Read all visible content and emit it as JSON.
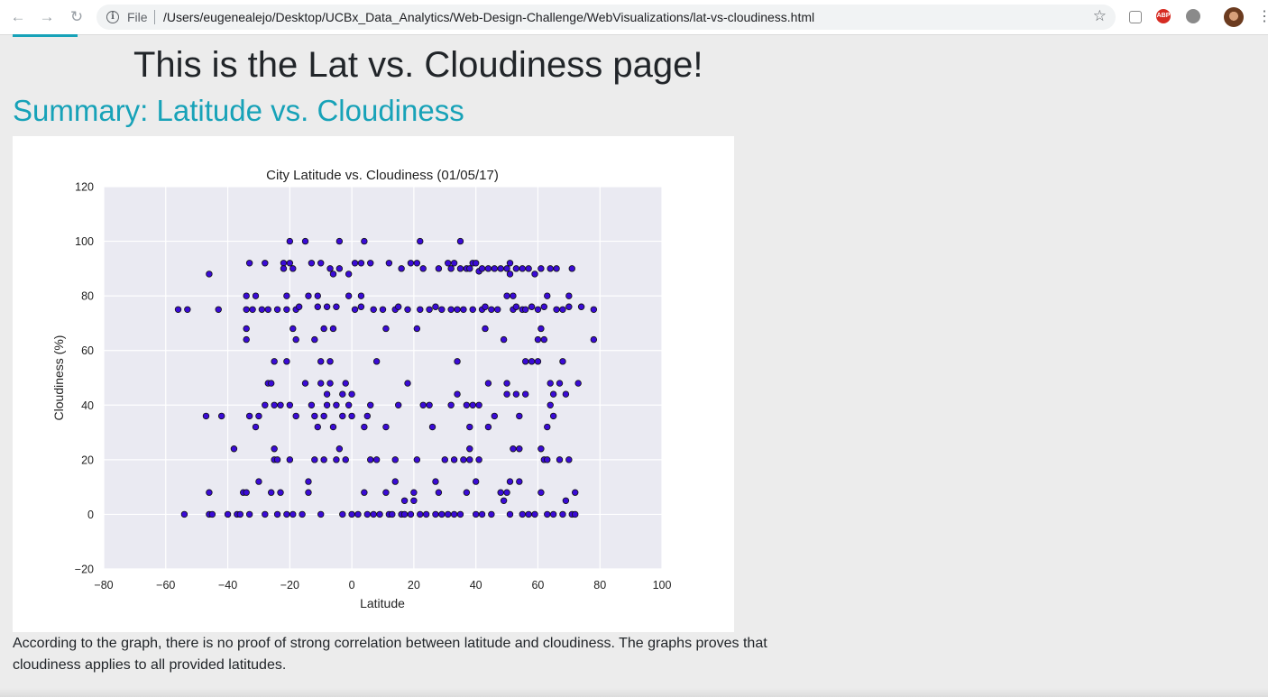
{
  "browser": {
    "scheme_label": "File",
    "url": "/Users/eugenealejo/Desktop/UCBx_Data_Analytics/Web-Design-Challenge/WebVisualizations/lat-vs-cloudiness.html",
    "icons": [
      "back-arrow-icon",
      "forward-arrow-icon",
      "reload-icon",
      "info-icon",
      "star-icon",
      "pocket-icon",
      "abp-icon",
      "extension-icon",
      "avatar",
      "menu-dots-icon"
    ],
    "abp_label": "ABP"
  },
  "page": {
    "title": "This is the Lat vs. Cloudiness page!",
    "summary_heading": "Summary: Latitude vs. Cloudiness",
    "description": "According to the graph, there is no proof of strong correlation between latitude and cloudiness. The graphs proves that cloudiness applies to all provided latitudes.",
    "accent_color": "#17a2b8"
  },
  "chart_data": {
    "type": "scatter",
    "title": "City Latitude vs. Cloudiness (01/05/17)",
    "xlabel": "Latitude",
    "ylabel": "Cloudiness (%)",
    "xlim": [
      -80,
      100
    ],
    "ylim": [
      -20,
      120
    ],
    "xticks": [
      "−80",
      "−60",
      "−40",
      "−20",
      "0",
      "20",
      "40",
      "60",
      "80",
      "100"
    ],
    "yticks": [
      "−20",
      "0",
      "20",
      "40",
      "60",
      "80",
      "100",
      "120"
    ],
    "grid": true,
    "marker_color": "#3a0bd6",
    "background_color": "#eaeaf2",
    "points": [
      [
        -54,
        0
      ],
      [
        -53,
        75
      ],
      [
        -56,
        75
      ],
      [
        -46,
        88
      ],
      [
        -47,
        36
      ],
      [
        -46,
        8
      ],
      [
        -46,
        0
      ],
      [
        -45,
        0
      ],
      [
        -43,
        75
      ],
      [
        -42,
        36
      ],
      [
        -40,
        0
      ],
      [
        -38,
        24
      ],
      [
        -37,
        0
      ],
      [
        -36,
        0
      ],
      [
        -35,
        8
      ],
      [
        -34,
        8
      ],
      [
        -34,
        75
      ],
      [
        -34,
        80
      ],
      [
        -34,
        64
      ],
      [
        -34,
        68
      ],
      [
        -33,
        92
      ],
      [
        -33,
        36
      ],
      [
        -33,
        0
      ],
      [
        -32,
        75
      ],
      [
        -31,
        80
      ],
      [
        -31,
        32
      ],
      [
        -30,
        12
      ],
      [
        -30,
        36
      ],
      [
        -29,
        75
      ],
      [
        -28,
        92
      ],
      [
        -28,
        0
      ],
      [
        -28,
        40
      ],
      [
        -27,
        48
      ],
      [
        -27,
        75
      ],
      [
        -26,
        8
      ],
      [
        -26,
        48
      ],
      [
        -25,
        20
      ],
      [
        -25,
        24
      ],
      [
        -25,
        56
      ],
      [
        -25,
        40
      ],
      [
        -24,
        75
      ],
      [
        -24,
        0
      ],
      [
        -24,
        20
      ],
      [
        -23,
        8
      ],
      [
        -23,
        40
      ],
      [
        -22,
        92
      ],
      [
        -22,
        90
      ],
      [
        -21,
        0
      ],
      [
        -21,
        75
      ],
      [
        -21,
        80
      ],
      [
        -21,
        56
      ],
      [
        -20,
        100
      ],
      [
        -20,
        92
      ],
      [
        -20,
        40
      ],
      [
        -20,
        20
      ],
      [
        -19,
        90
      ],
      [
        -19,
        68
      ],
      [
        -19,
        0
      ],
      [
        -18,
        75
      ],
      [
        -18,
        36
      ],
      [
        -18,
        64
      ],
      [
        -17,
        76
      ],
      [
        -16,
        0
      ],
      [
        -15,
        100
      ],
      [
        -15,
        48
      ],
      [
        -14,
        80
      ],
      [
        -14,
        12
      ],
      [
        -14,
        8
      ],
      [
        -13,
        40
      ],
      [
        -13,
        92
      ],
      [
        -12,
        20
      ],
      [
        -12,
        36
      ],
      [
        -12,
        64
      ],
      [
        -11,
        76
      ],
      [
        -11,
        80
      ],
      [
        -11,
        32
      ],
      [
        -10,
        0
      ],
      [
        -10,
        48
      ],
      [
        -10,
        56
      ],
      [
        -10,
        92
      ],
      [
        -9,
        36
      ],
      [
        -9,
        68
      ],
      [
        -9,
        20
      ],
      [
        -8,
        76
      ],
      [
        -8,
        44
      ],
      [
        -8,
        40
      ],
      [
        -7,
        90
      ],
      [
        -7,
        48
      ],
      [
        -7,
        56
      ],
      [
        -6,
        68
      ],
      [
        -6,
        88
      ],
      [
        -6,
        32
      ],
      [
        -5,
        76
      ],
      [
        -5,
        40
      ],
      [
        -5,
        20
      ],
      [
        -4,
        100
      ],
      [
        -4,
        90
      ],
      [
        -4,
        24
      ],
      [
        -3,
        36
      ],
      [
        -3,
        44
      ],
      [
        -3,
        0
      ],
      [
        -2,
        48
      ],
      [
        -2,
        20
      ],
      [
        -1,
        80
      ],
      [
        -1,
        88
      ],
      [
        -1,
        40
      ],
      [
        0,
        36
      ],
      [
        0,
        44
      ],
      [
        0,
        0
      ],
      [
        1,
        92
      ],
      [
        1,
        75
      ],
      [
        2,
        0
      ],
      [
        3,
        92
      ],
      [
        3,
        80
      ],
      [
        3,
        76
      ],
      [
        4,
        100
      ],
      [
        4,
        32
      ],
      [
        4,
        8
      ],
      [
        5,
        0
      ],
      [
        5,
        36
      ],
      [
        6,
        92
      ],
      [
        6,
        20
      ],
      [
        6,
        40
      ],
      [
        7,
        75
      ],
      [
        7,
        0
      ],
      [
        8,
        56
      ],
      [
        8,
        20
      ],
      [
        9,
        0
      ],
      [
        10,
        75
      ],
      [
        11,
        8
      ],
      [
        11,
        32
      ],
      [
        11,
        68
      ],
      [
        12,
        92
      ],
      [
        12,
        0
      ],
      [
        13,
        0
      ],
      [
        14,
        75
      ],
      [
        14,
        12
      ],
      [
        14,
        20
      ],
      [
        15,
        40
      ],
      [
        15,
        76
      ],
      [
        16,
        90
      ],
      [
        16,
        0
      ],
      [
        17,
        0
      ],
      [
        17,
        5
      ],
      [
        18,
        48
      ],
      [
        18,
        75
      ],
      [
        19,
        92
      ],
      [
        19,
        0
      ],
      [
        20,
        5
      ],
      [
        20,
        8
      ],
      [
        21,
        92
      ],
      [
        21,
        20
      ],
      [
        21,
        68
      ],
      [
        22,
        100
      ],
      [
        22,
        75
      ],
      [
        22,
        0
      ],
      [
        23,
        40
      ],
      [
        23,
        90
      ],
      [
        24,
        0
      ],
      [
        25,
        75
      ],
      [
        25,
        40
      ],
      [
        26,
        32
      ],
      [
        27,
        12
      ],
      [
        27,
        76
      ],
      [
        27,
        0
      ],
      [
        28,
        8
      ],
      [
        28,
        90
      ],
      [
        29,
        75
      ],
      [
        29,
        0
      ],
      [
        30,
        20
      ],
      [
        31,
        92
      ],
      [
        31,
        0
      ],
      [
        32,
        90
      ],
      [
        32,
        75
      ],
      [
        32,
        40
      ],
      [
        33,
        20
      ],
      [
        33,
        92
      ],
      [
        33,
        0
      ],
      [
        34,
        75
      ],
      [
        34,
        44
      ],
      [
        34,
        56
      ],
      [
        35,
        100
      ],
      [
        35,
        90
      ],
      [
        35,
        0
      ],
      [
        36,
        20
      ],
      [
        36,
        75
      ],
      [
        37,
        90
      ],
      [
        37,
        8
      ],
      [
        37,
        40
      ],
      [
        38,
        90
      ],
      [
        38,
        24
      ],
      [
        38,
        20
      ],
      [
        38,
        32
      ],
      [
        39,
        92
      ],
      [
        39,
        40
      ],
      [
        39,
        75
      ],
      [
        40,
        92
      ],
      [
        40,
        12
      ],
      [
        40,
        0
      ],
      [
        41,
        40
      ],
      [
        41,
        89
      ],
      [
        41,
        20
      ],
      [
        42,
        75
      ],
      [
        42,
        90
      ],
      [
        42,
        0
      ],
      [
        43,
        76
      ],
      [
        43,
        68
      ],
      [
        44,
        48
      ],
      [
        44,
        90
      ],
      [
        44,
        32
      ],
      [
        45,
        75
      ],
      [
        45,
        0
      ],
      [
        46,
        36
      ],
      [
        46,
        90
      ],
      [
        47,
        75
      ],
      [
        48,
        90
      ],
      [
        48,
        8
      ],
      [
        49,
        5
      ],
      [
        49,
        64
      ],
      [
        50,
        90
      ],
      [
        50,
        80
      ],
      [
        50,
        44
      ],
      [
        50,
        48
      ],
      [
        50,
        8
      ],
      [
        51,
        92
      ],
      [
        51,
        88
      ],
      [
        51,
        12
      ],
      [
        51,
        0
      ],
      [
        52,
        80
      ],
      [
        52,
        75
      ],
      [
        52,
        24
      ],
      [
        53,
        90
      ],
      [
        53,
        76
      ],
      [
        53,
        44
      ],
      [
        54,
        12
      ],
      [
        54,
        36
      ],
      [
        54,
        24
      ],
      [
        55,
        75
      ],
      [
        55,
        90
      ],
      [
        55,
        0
      ],
      [
        56,
        75
      ],
      [
        56,
        56
      ],
      [
        56,
        44
      ],
      [
        57,
        90
      ],
      [
        57,
        0
      ],
      [
        58,
        76
      ],
      [
        58,
        56
      ],
      [
        59,
        88
      ],
      [
        59,
        0
      ],
      [
        60,
        56
      ],
      [
        60,
        75
      ],
      [
        60,
        64
      ],
      [
        61,
        90
      ],
      [
        61,
        24
      ],
      [
        61,
        8
      ],
      [
        61,
        68
      ],
      [
        62,
        20
      ],
      [
        62,
        64
      ],
      [
        62,
        76
      ],
      [
        63,
        0
      ],
      [
        63,
        80
      ],
      [
        63,
        32
      ],
      [
        63,
        20
      ],
      [
        64,
        40
      ],
      [
        64,
        48
      ],
      [
        64,
        90
      ],
      [
        65,
        36
      ],
      [
        65,
        44
      ],
      [
        65,
        0
      ],
      [
        66,
        90
      ],
      [
        66,
        75
      ],
      [
        67,
        20
      ],
      [
        67,
        48
      ],
      [
        68,
        56
      ],
      [
        68,
        0
      ],
      [
        68,
        75
      ],
      [
        69,
        5
      ],
      [
        69,
        44
      ],
      [
        70,
        80
      ],
      [
        70,
        20
      ],
      [
        70,
        76
      ],
      [
        71,
        0
      ],
      [
        71,
        90
      ],
      [
        72,
        8
      ],
      [
        72,
        0
      ],
      [
        73,
        48
      ],
      [
        74,
        76
      ],
      [
        78,
        64
      ],
      [
        78,
        75
      ]
    ]
  }
}
